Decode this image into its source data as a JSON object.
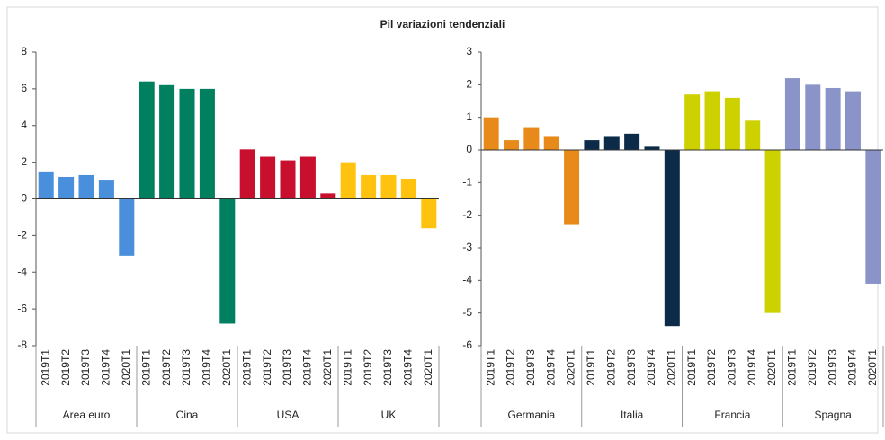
{
  "title": "Pil variazioni tendenziali",
  "chart_data": [
    {
      "type": "bar",
      "ylim": [
        -8,
        8
      ],
      "yticks": [
        -8,
        -6,
        -4,
        -2,
        0,
        2,
        4,
        6,
        8
      ],
      "groups": [
        {
          "name": "Area euro",
          "color": "#4a8fdb",
          "categories": [
            "2019T1",
            "2019T2",
            "2019T3",
            "2019T4",
            "2020T1"
          ],
          "values": [
            1.5,
            1.2,
            1.3,
            1.0,
            -3.1
          ]
        },
        {
          "name": "Cina",
          "color": "#00805f",
          "categories": [
            "2019T1",
            "2019T2",
            "2019T3",
            "2019T4",
            "2020T1"
          ],
          "values": [
            6.4,
            6.2,
            6.0,
            6.0,
            -6.8
          ]
        },
        {
          "name": "USA",
          "color": "#c8102e",
          "categories": [
            "2019T1",
            "2019T2",
            "2019T3",
            "2019T4",
            "2020T1"
          ],
          "values": [
            2.7,
            2.3,
            2.1,
            2.3,
            0.3
          ]
        },
        {
          "name": "UK",
          "color": "#ffc20e",
          "categories": [
            "2019T1",
            "2019T2",
            "2019T3",
            "2019T4",
            "2020T1"
          ],
          "values": [
            2.0,
            1.3,
            1.3,
            1.1,
            -1.6
          ]
        }
      ]
    },
    {
      "type": "bar",
      "ylim": [
        -6,
        3
      ],
      "yticks": [
        -6,
        -5,
        -4,
        -3,
        -2,
        -1,
        0,
        1,
        2,
        3
      ],
      "groups": [
        {
          "name": "Germania",
          "color": "#e88a1a",
          "categories": [
            "2019T1",
            "2019T2",
            "2019T3",
            "2019T4",
            "2020T1"
          ],
          "values": [
            1.0,
            0.3,
            0.7,
            0.4,
            -2.3
          ]
        },
        {
          "name": "Italia",
          "color": "#0b2b48",
          "categories": [
            "2019T1",
            "2019T2",
            "2019T3",
            "2019T4",
            "2020T1"
          ],
          "values": [
            0.3,
            0.4,
            0.5,
            0.1,
            -5.4
          ]
        },
        {
          "name": "Francia",
          "color": "#cdd100",
          "categories": [
            "2019T1",
            "2019T2",
            "2019T3",
            "2019T4",
            "2020T1"
          ],
          "values": [
            1.7,
            1.8,
            1.6,
            0.9,
            -5.0
          ]
        },
        {
          "name": "Spagna",
          "color": "#8b94c9",
          "categories": [
            "2019T1",
            "2019T2",
            "2019T3",
            "2019T4",
            "2020T1"
          ],
          "values": [
            2.2,
            2.0,
            1.9,
            1.8,
            -4.1
          ]
        }
      ]
    }
  ]
}
